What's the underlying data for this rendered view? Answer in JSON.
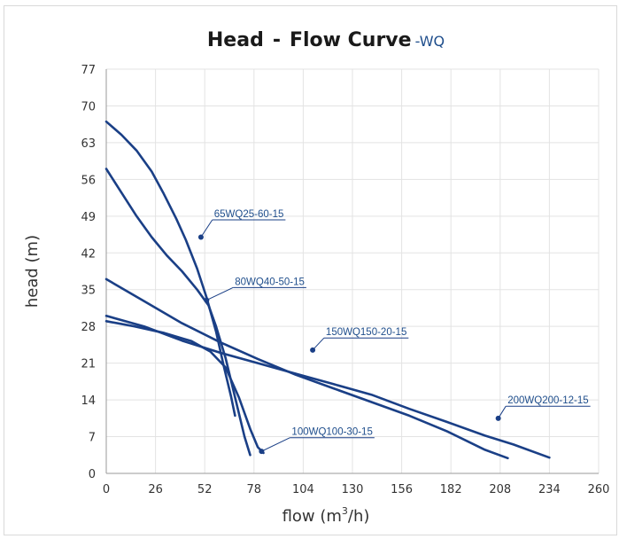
{
  "chart_data": {
    "type": "line",
    "title": "Head",
    "title_separator": "-",
    "title_main": "Flow Curve",
    "title_suffix": "-WQ",
    "xlabel_text": "flow (m",
    "xlabel_sup": "3",
    "xlabel_end": "/h)",
    "ylabel": "head (m)",
    "xlim": [
      0,
      260
    ],
    "ylim": [
      0,
      77
    ],
    "xticks": [
      0,
      26,
      52,
      78,
      104,
      130,
      156,
      182,
      208,
      234,
      260
    ],
    "yticks": [
      0,
      7,
      14,
      21,
      28,
      35,
      42,
      49,
      56,
      63,
      70,
      77
    ],
    "grid": true,
    "line_color": "#1a3f86",
    "series": [
      {
        "name": "65WQ25-60-15",
        "points": [
          [
            0,
            67
          ],
          [
            8,
            64.5
          ],
          [
            16,
            61.5
          ],
          [
            24,
            57.5
          ],
          [
            30,
            53.5
          ],
          [
            37,
            48.5
          ],
          [
            42,
            44.5
          ],
          [
            48,
            39
          ],
          [
            53,
            33.5
          ],
          [
            58,
            27
          ],
          [
            62,
            20.5
          ],
          [
            66,
            14.5
          ],
          [
            68,
            11
          ]
        ],
        "marker": [
          50,
          45
        ],
        "label_at": [
          56,
          48.3
        ]
      },
      {
        "name": "80WQ40-50-15",
        "points": [
          [
            0,
            58
          ],
          [
            8,
            53.5
          ],
          [
            16,
            49
          ],
          [
            24,
            45
          ],
          [
            32,
            41.5
          ],
          [
            40,
            38.5
          ],
          [
            48,
            35
          ],
          [
            54,
            32
          ],
          [
            58,
            28
          ],
          [
            63,
            22
          ],
          [
            68,
            14.5
          ],
          [
            73,
            7
          ],
          [
            76,
            3.5
          ]
        ],
        "marker": [
          53,
          33
        ],
        "label_at": [
          67,
          35.4
        ]
      },
      {
        "name": "150WQ150-20-15",
        "points": [
          [
            0,
            37
          ],
          [
            20,
            32.8
          ],
          [
            40,
            28.6
          ],
          [
            60,
            25
          ],
          [
            80,
            21.8
          ],
          [
            100,
            18.8
          ],
          [
            120,
            16.2
          ],
          [
            140,
            13.6
          ],
          [
            160,
            11
          ],
          [
            180,
            8
          ],
          [
            200,
            4.5
          ],
          [
            212,
            2.9
          ]
        ],
        "marker": [
          109,
          23.5
        ],
        "label_at": [
          115,
          25.8
        ]
      },
      {
        "name": "100WQ100-30-15",
        "points": [
          [
            0,
            29
          ],
          [
            15,
            28
          ],
          [
            30,
            26.8
          ],
          [
            45,
            25.2
          ],
          [
            55,
            23.2
          ],
          [
            63,
            20.2
          ],
          [
            70,
            14.5
          ],
          [
            76,
            8.5
          ],
          [
            80,
            5
          ],
          [
            83,
            3.9
          ]
        ],
        "marker": [
          82,
          4.2
        ],
        "label_at": [
          97,
          6.8
        ]
      },
      {
        "name": "200WQ200-12-15",
        "points": [
          [
            0,
            30
          ],
          [
            20,
            28
          ],
          [
            40,
            25.3
          ],
          [
            60,
            23
          ],
          [
            80,
            21
          ],
          [
            100,
            19
          ],
          [
            120,
            17
          ],
          [
            140,
            15
          ],
          [
            160,
            12.3
          ],
          [
            180,
            9.8
          ],
          [
            200,
            7.2
          ],
          [
            215,
            5.5
          ],
          [
            234,
            3
          ]
        ],
        "marker": [
          207,
          10.5
        ],
        "label_at": [
          211,
          12.8
        ]
      }
    ]
  }
}
